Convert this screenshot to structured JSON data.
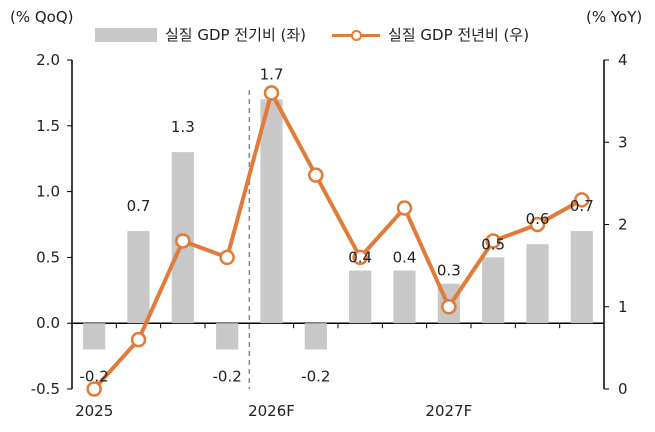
{
  "chart_data": {
    "type": "bar+line",
    "left_axis_title": "(% QoQ)",
    "right_axis_title": "(% YoY)",
    "x_tick_labels": [
      {
        "index": 0,
        "label": "2025"
      },
      {
        "index": 4,
        "label": "2026F"
      },
      {
        "index": 8,
        "label": "2027F"
      }
    ],
    "forecast_divider_after_index": 4,
    "left_axis": {
      "min": -0.5,
      "max": 2.0,
      "ticks": [
        "-0.5",
        "0.0",
        "0.5",
        "1.0",
        "1.5",
        "2.0"
      ]
    },
    "right_axis": {
      "min": 0,
      "max": 4,
      "ticks": [
        "0",
        "1",
        "2",
        "3",
        "4"
      ]
    },
    "series": [
      {
        "name": "실질 GDP 전기비 (좌)",
        "type": "bar",
        "axis": "left",
        "color": "#c8c8c8",
        "values": [
          -0.2,
          0.7,
          1.3,
          -0.2,
          1.7,
          -0.2,
          0.4,
          0.4,
          0.3,
          0.5,
          0.6,
          0.7
        ],
        "data_labels": [
          "-0.2",
          "0.7",
          "1.3",
          "-0.2",
          "1.7",
          "-0.2",
          "0.4",
          "0.4",
          "0.3",
          "0.5",
          "0.6",
          "0.7"
        ]
      },
      {
        "name": "실질 GDP 전년비 (우)",
        "type": "line",
        "axis": "right",
        "color": "#e07b39",
        "values": [
          0.0,
          0.6,
          1.8,
          1.6,
          3.6,
          2.6,
          1.6,
          2.2,
          1.0,
          1.8,
          2.0,
          2.3
        ]
      }
    ]
  }
}
